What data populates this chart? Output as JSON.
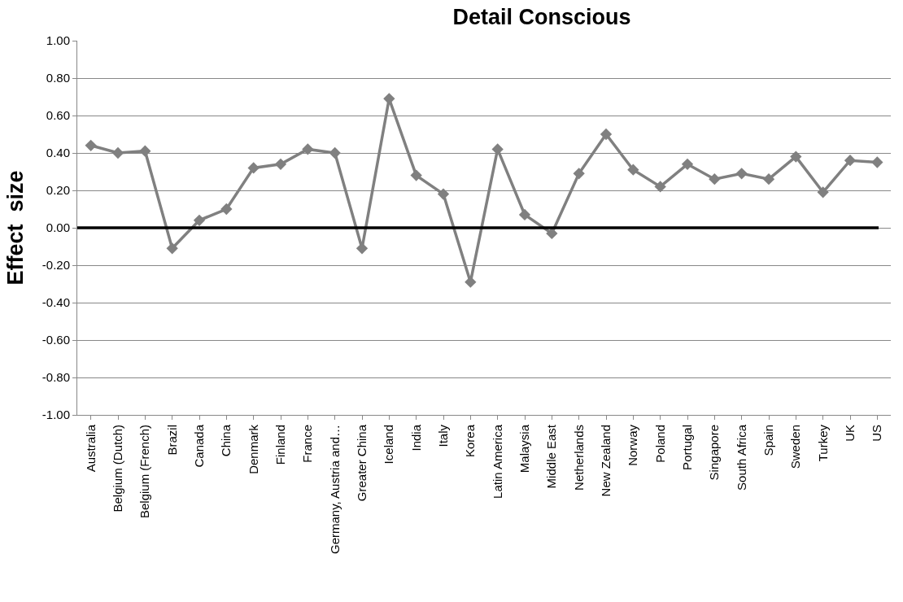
{
  "chart_data": {
    "type": "line",
    "title": "Detail Conscious",
    "ylabel": "Effect  size",
    "categories": [
      "Australia",
      "Belgium (Dutch)",
      "Belgium (French)",
      "Brazil",
      "Canada",
      "China",
      "Denmark",
      "Finland",
      "France",
      "Germany, Austria and…",
      "Greater China",
      "Iceland",
      "India",
      "Italy",
      "Korea",
      "Latin America",
      "Malaysia",
      "Middle East",
      "Netherlands",
      "New Zealand",
      "Norway",
      "Poland",
      "Portugal",
      "Singapore",
      "South Africa",
      "Spain",
      "Sweden",
      "Turkey",
      "UK",
      "US"
    ],
    "series": [
      {
        "color": "#808080",
        "values": [
          0.44,
          0.4,
          0.41,
          -0.11,
          0.04,
          0.1,
          0.32,
          0.34,
          0.42,
          0.4,
          -0.11,
          0.69,
          0.28,
          0.18,
          -0.29,
          0.42,
          0.07,
          -0.03,
          0.29,
          0.5,
          0.31,
          0.22,
          0.34,
          0.26,
          0.29,
          0.26,
          0.38,
          0.19,
          0.36,
          0.35
        ]
      }
    ],
    "ylim": [
      -1.0,
      1.0
    ],
    "yticks": [
      {
        "value": -1.0,
        "label": "-1.00"
      },
      {
        "value": -0.8,
        "label": "-0.80"
      },
      {
        "value": -0.6,
        "label": "-0.60"
      },
      {
        "value": -0.4,
        "label": "-0.40"
      },
      {
        "value": -0.2,
        "label": "-0.20"
      },
      {
        "value": 0.0,
        "label": "0.00"
      },
      {
        "value": 0.2,
        "label": "0.20"
      },
      {
        "value": 0.4,
        "label": "0.40"
      },
      {
        "value": 0.6,
        "label": "0.60"
      },
      {
        "value": 0.8,
        "label": "0.80"
      },
      {
        "value": 1.0,
        "label": "1.00"
      }
    ],
    "ref_lines": [
      {
        "axis": "y",
        "value": 0.0,
        "color": "#000000"
      }
    ],
    "grid": "y",
    "legend": false,
    "marker": "diamond",
    "line_style": "solid"
  }
}
